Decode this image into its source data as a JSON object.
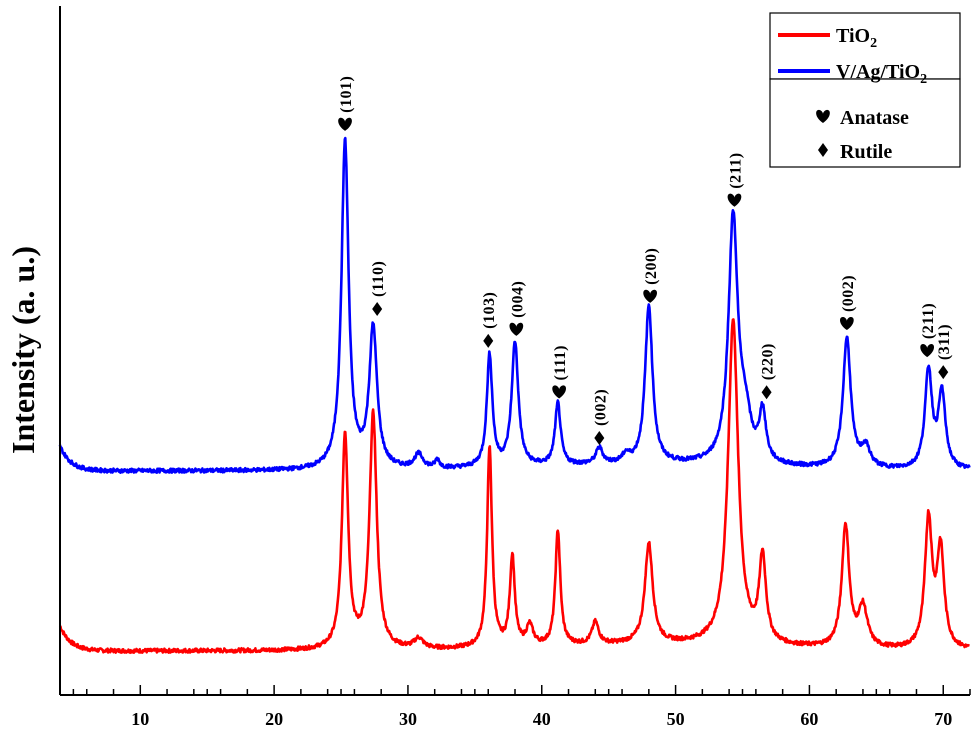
{
  "chart_data": {
    "type": "line",
    "xlabel": "",
    "ylabel": "Intensity (a. u.)",
    "xlim": [
      4,
      72
    ],
    "xticks": [
      10,
      20,
      30,
      40,
      50,
      60,
      70
    ],
    "y_tick_labels": false,
    "grid": false,
    "legend": {
      "position": "top-right",
      "entries": [
        {
          "label": "TiO",
          "sub": "2",
          "color": "#ff0000",
          "type": "line"
        },
        {
          "label": "V/Ag/TiO",
          "sub": "2",
          "color": "#0000ff",
          "type": "line"
        },
        {
          "label": "Anatase",
          "type": "marker",
          "marker": "heart"
        },
        {
          "label": "Rutile",
          "type": "marker",
          "marker": "diamond"
        }
      ]
    },
    "series": [
      {
        "label": "TiO2",
        "color": "#ff0000",
        "baseline": 0,
        "peaks": [
          {
            "x": 25.3,
            "h": 215,
            "w": 0.28
          },
          {
            "x": 27.4,
            "h": 235,
            "w": 0.32
          },
          {
            "x": 30.8,
            "h": 10,
            "w": 0.4
          },
          {
            "x": 36.1,
            "h": 200,
            "w": 0.22
          },
          {
            "x": 37.8,
            "h": 90,
            "w": 0.22
          },
          {
            "x": 39.1,
            "h": 20,
            "w": 0.3
          },
          {
            "x": 41.2,
            "h": 115,
            "w": 0.22
          },
          {
            "x": 44.0,
            "h": 22,
            "w": 0.3
          },
          {
            "x": 48.0,
            "h": 100,
            "w": 0.35
          },
          {
            "x": 54.3,
            "h": 325,
            "w": 0.45
          },
          {
            "x": 56.5,
            "h": 85,
            "w": 0.3
          },
          {
            "x": 62.7,
            "h": 122,
            "w": 0.33
          },
          {
            "x": 64.0,
            "h": 40,
            "w": 0.4
          },
          {
            "x": 68.9,
            "h": 128,
            "w": 0.32
          },
          {
            "x": 69.8,
            "h": 98,
            "w": 0.32
          }
        ]
      },
      {
        "label": "V/Ag/TiO2",
        "color": "#0000ff",
        "baseline": 180,
        "peaks": [
          {
            "x": 25.3,
            "h": 328,
            "w": 0.32
          },
          {
            "x": 27.4,
            "h": 140,
            "w": 0.35
          },
          {
            "x": 30.8,
            "h": 14,
            "w": 0.4
          },
          {
            "x": 32.2,
            "h": 8,
            "w": 0.2
          },
          {
            "x": 36.1,
            "h": 112,
            "w": 0.25
          },
          {
            "x": 38.0,
            "h": 124,
            "w": 0.3
          },
          {
            "x": 41.2,
            "h": 62,
            "w": 0.25
          },
          {
            "x": 44.3,
            "h": 16,
            "w": 0.3
          },
          {
            "x": 46.3,
            "h": 8,
            "w": 0.3
          },
          {
            "x": 48.0,
            "h": 158,
            "w": 0.33
          },
          {
            "x": 54.3,
            "h": 245,
            "w": 0.42
          },
          {
            "x": 55.2,
            "h": 40,
            "w": 0.5
          },
          {
            "x": 56.5,
            "h": 50,
            "w": 0.3
          },
          {
            "x": 62.8,
            "h": 130,
            "w": 0.35
          },
          {
            "x": 64.2,
            "h": 20,
            "w": 0.4
          },
          {
            "x": 68.9,
            "h": 98,
            "w": 0.32
          },
          {
            "x": 69.9,
            "h": 75,
            "w": 0.32
          }
        ]
      }
    ],
    "annotations": [
      {
        "x": 25.3,
        "marker": "heart",
        "label": "(101)"
      },
      {
        "x": 27.7,
        "marker": "diamond",
        "label": "(110)"
      },
      {
        "x": 36.0,
        "marker": "diamond",
        "label": "(103)"
      },
      {
        "x": 38.1,
        "marker": "heart",
        "label": "(004)"
      },
      {
        "x": 41.3,
        "marker": "heart",
        "label": "(111)"
      },
      {
        "x": 44.3,
        "marker": "diamond",
        "label": "(002)"
      },
      {
        "x": 48.1,
        "marker": "heart",
        "label": "(200)"
      },
      {
        "x": 54.4,
        "marker": "heart",
        "label": "(211)"
      },
      {
        "x": 56.8,
        "marker": "diamond",
        "label": "(220)"
      },
      {
        "x": 62.8,
        "marker": "heart",
        "label": "(002)"
      },
      {
        "x": 68.8,
        "marker": "heart",
        "label": "(211)"
      },
      {
        "x": 70.0,
        "marker": "diamond",
        "label": "(311)"
      }
    ]
  }
}
